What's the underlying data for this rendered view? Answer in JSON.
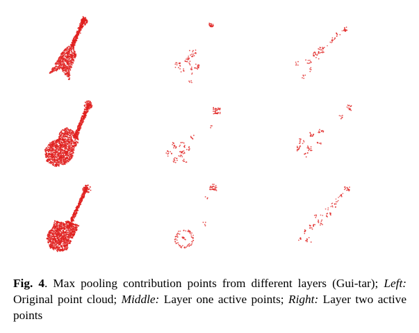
{
  "figure": {
    "point_color": "#e0201f",
    "rows": [
      {
        "shape": "flying-v-guitar",
        "panels": [
          "original-point-cloud",
          "layer-one-active-points",
          "layer-two-active-points"
        ]
      },
      {
        "shape": "les-paul-guitar",
        "panels": [
          "original-point-cloud",
          "layer-one-active-points",
          "layer-two-active-points"
        ]
      },
      {
        "shape": "electric-bass-guitar",
        "panels": [
          "original-point-cloud",
          "layer-one-active-points",
          "layer-two-active-points"
        ]
      }
    ]
  },
  "caption": {
    "label": "Fig. 4",
    "period": ".",
    "text_1": "Max pooling contribution points from different layers (Gui-tar); ",
    "left_label": "Left:",
    "text_2": " Original point cloud; ",
    "middle_label": "Middle:",
    "text_3": " Layer one active points; ",
    "right_label": "Right:",
    "text_4": " Layer two active points"
  }
}
